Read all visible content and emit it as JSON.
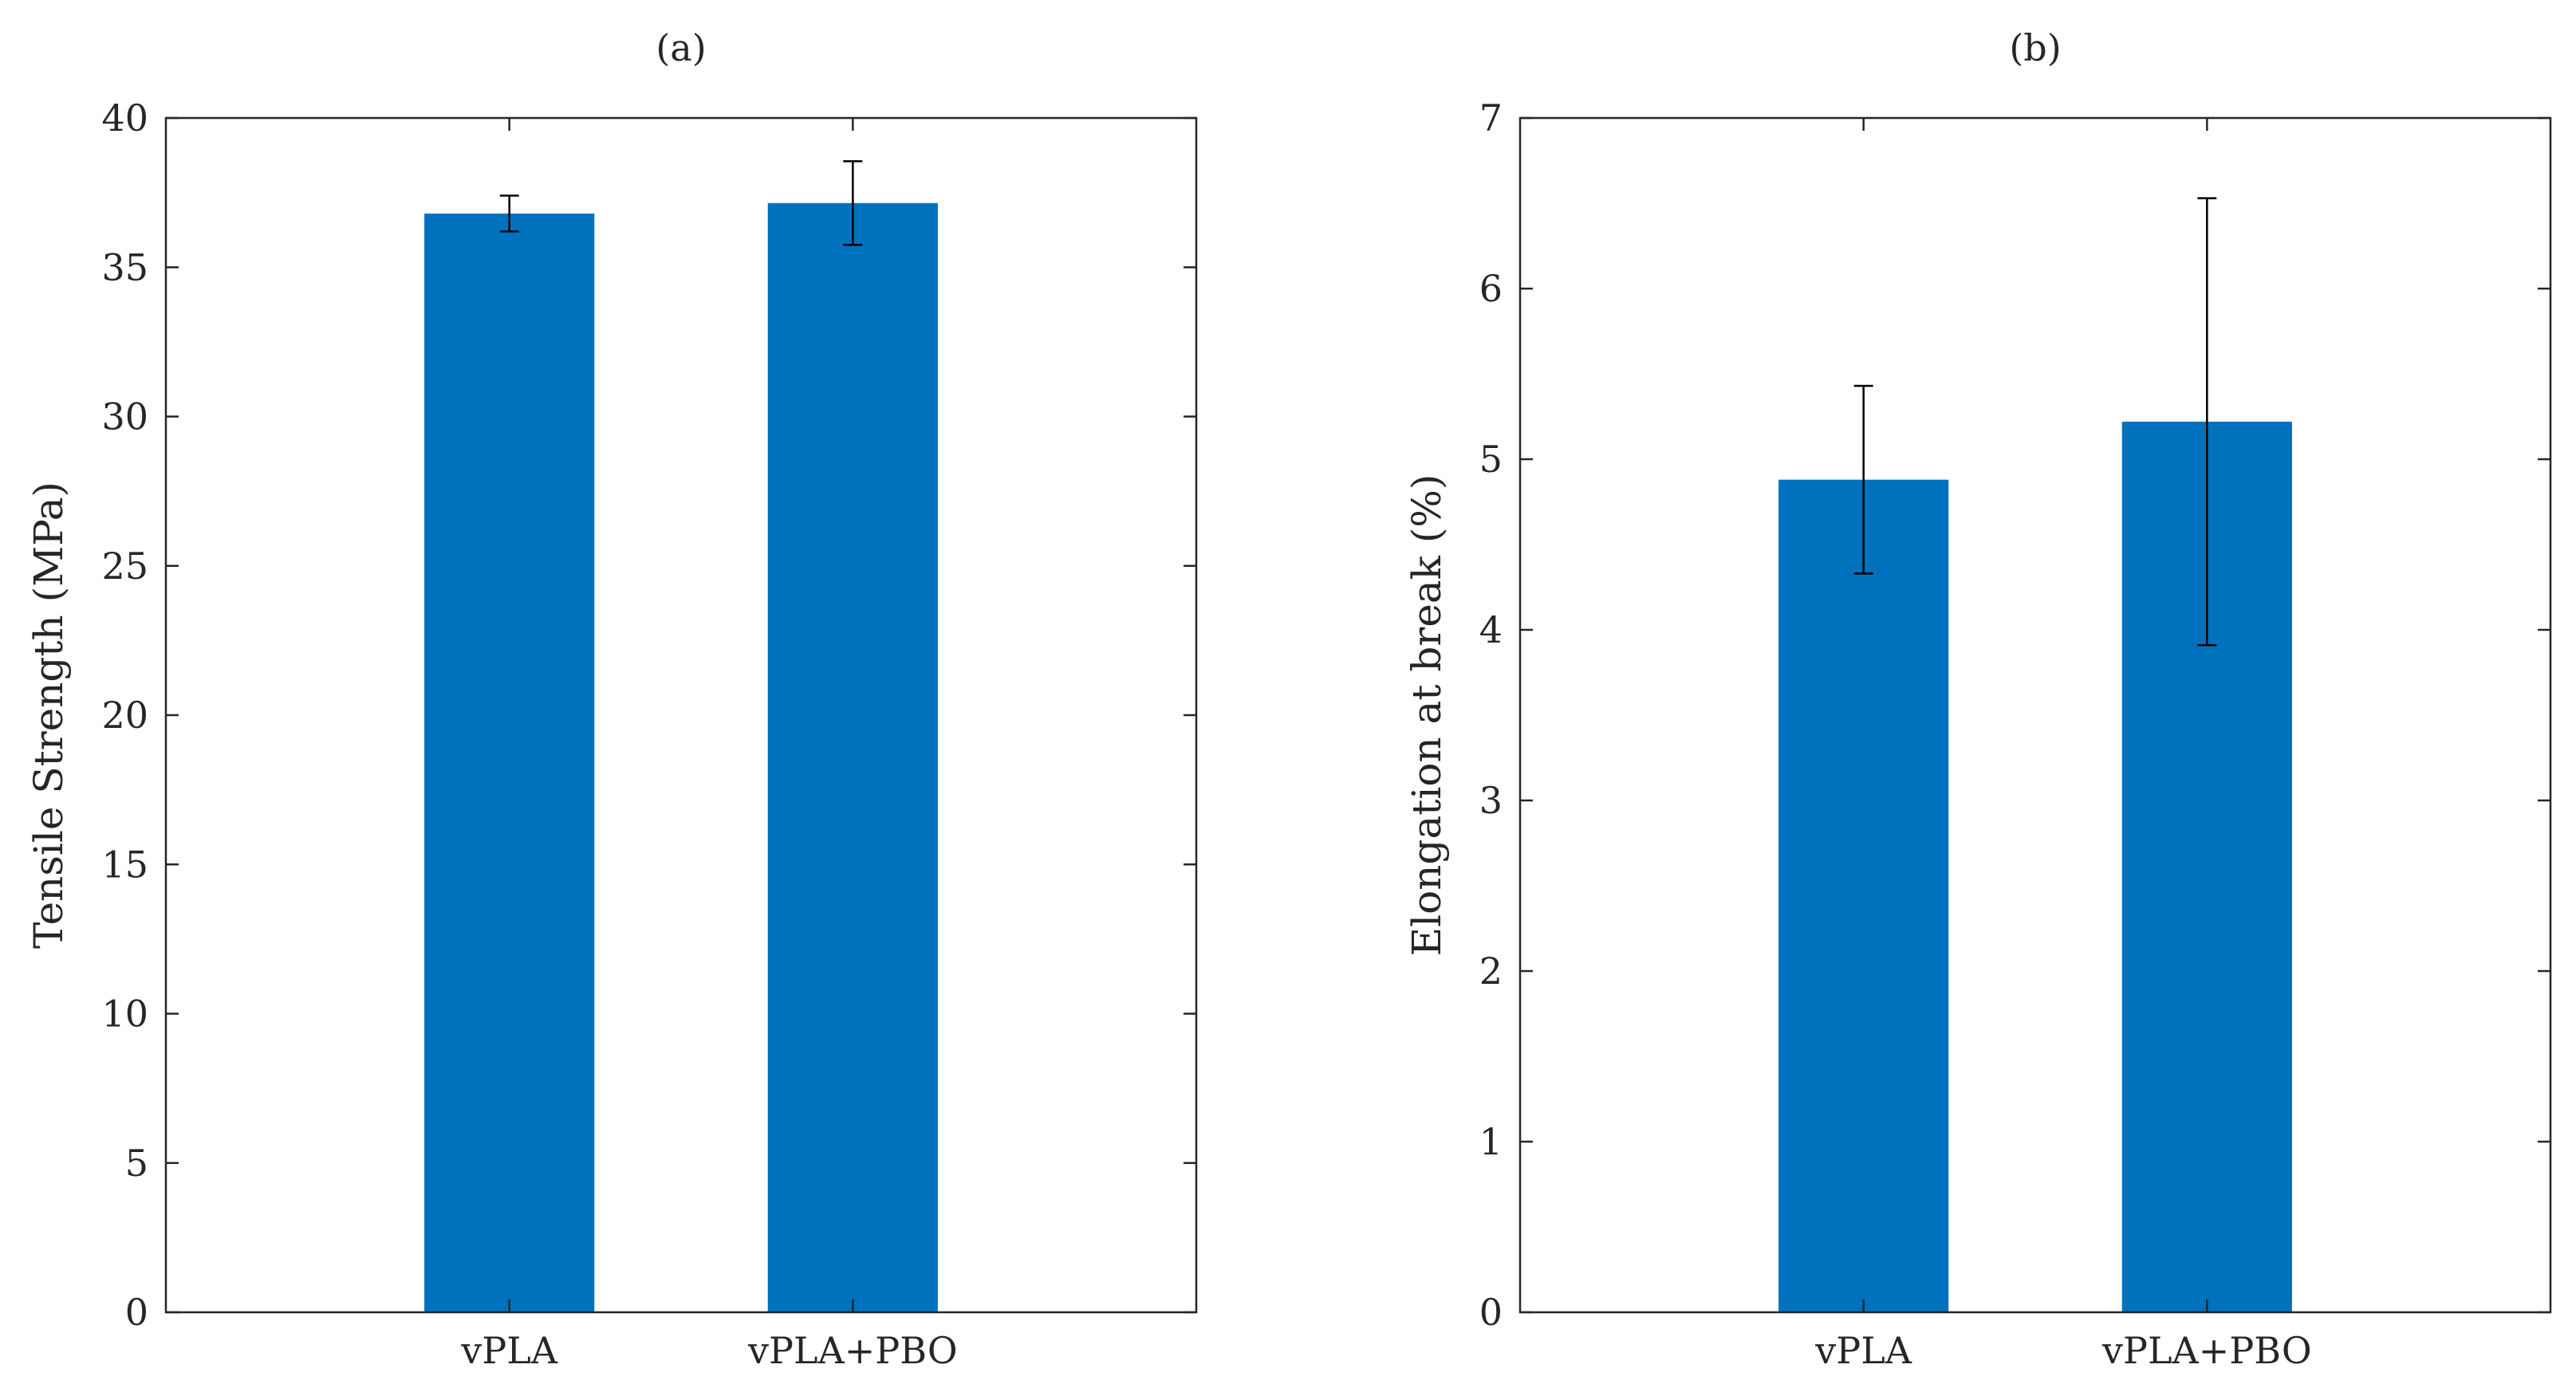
{
  "colors": {
    "bar": "#0072BD",
    "axes": "#262626",
    "errorbar": "#000000",
    "background": "#ffffff"
  },
  "chart_data": [
    {
      "type": "bar",
      "panel_label": "(a)",
      "title": "(a)",
      "categories": [
        "vPLA",
        "vPLA+PBO"
      ],
      "values": [
        36.8,
        37.15
      ],
      "errors": [
        0.6,
        1.4
      ],
      "xlabel": "",
      "ylabel": "Tensile Strength (MPa)",
      "ylim": [
        0,
        40
      ],
      "yticks": [
        0,
        5,
        10,
        15,
        20,
        25,
        30,
        35,
        40
      ],
      "ytick_labels": [
        "0",
        "5",
        "10",
        "15",
        "20",
        "25",
        "30",
        "35",
        "40"
      ],
      "grid": false
    },
    {
      "type": "bar",
      "panel_label": "(b)",
      "title": "(b)",
      "categories": [
        "vPLA",
        "vPLA+PBO"
      ],
      "values": [
        4.88,
        5.22
      ],
      "errors": [
        0.55,
        1.31
      ],
      "xlabel": "",
      "ylabel": "Elongation at break (%)",
      "ylim": [
        0,
        7
      ],
      "yticks": [
        0,
        1,
        2,
        3,
        4,
        5,
        6,
        7
      ],
      "ytick_labels": [
        "0",
        "1",
        "2",
        "3",
        "4",
        "5",
        "6",
        "7"
      ],
      "grid": false
    }
  ]
}
